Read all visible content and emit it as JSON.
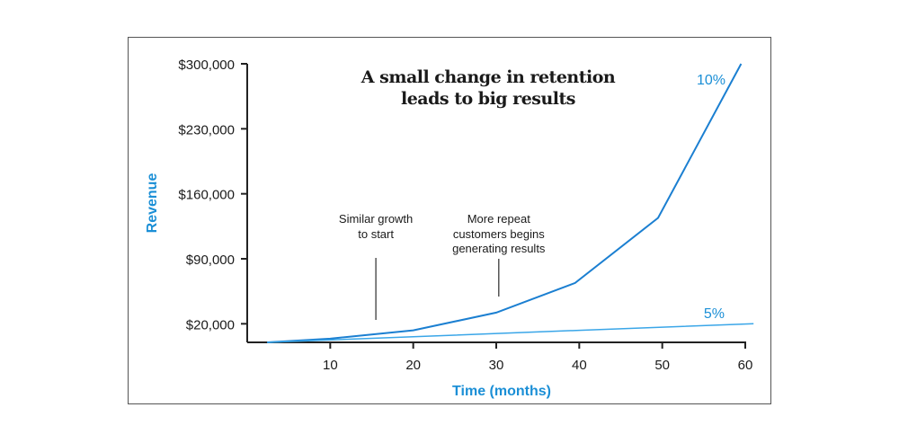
{
  "chart_data": {
    "type": "line",
    "title": "A small change in retention leads to big results",
    "title_lines": [
      "A small change in retention",
      "leads to big results"
    ],
    "xlabel": "Time (months)",
    "ylabel": "Revenue",
    "xlim": [
      0,
      60
    ],
    "ylim": [
      0,
      300000
    ],
    "x_ticks": [
      10,
      20,
      30,
      40,
      50,
      60
    ],
    "x_tick_labels": [
      "10",
      "20",
      "30",
      "40",
      "50",
      "60"
    ],
    "y_ticks": [
      20000,
      90000,
      160000,
      230000,
      300000
    ],
    "y_tick_labels": [
      "$20,000",
      "$90,000",
      "$160,000",
      "$230,000",
      "$300,000"
    ],
    "grid": false,
    "series": [
      {
        "name": "10%",
        "color": "#1b7fd1",
        "x": [
          2.4,
          10,
          20,
          30,
          39.5,
          49.5,
          59.5
        ],
        "y": [
          0,
          4000,
          13000,
          32000,
          64000,
          134000,
          300000
        ]
      },
      {
        "name": "5%",
        "color": "#3aa6e8",
        "x": [
          2.4,
          20,
          40,
          61
        ],
        "y": [
          0,
          6000,
          13000,
          20000
        ]
      }
    ],
    "annotations": [
      {
        "lines": [
          "Similar growth",
          "to start"
        ],
        "x": 15.5
      },
      {
        "lines": [
          "More repeat",
          "customers begins",
          "generating results"
        ],
        "x": 30.3
      }
    ]
  }
}
